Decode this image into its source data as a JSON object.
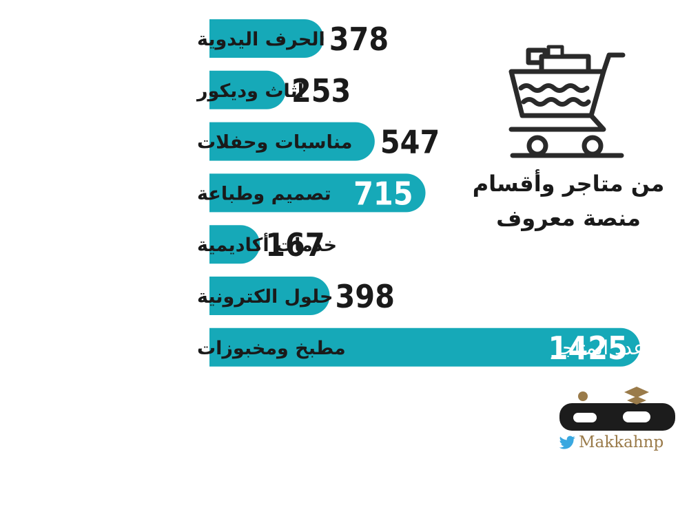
{
  "chart_data": {
    "type": "bar",
    "orientation": "horizontal",
    "categories": [
      "الحرف اليدوية",
      "أثاث وديكور",
      "مناسبات وحفلات",
      "تصميم وطباعة",
      "خدمات أكاديمية",
      "حلول الكترونية",
      "مطبخ ومخبوزات"
    ],
    "values": [
      378,
      253,
      547,
      715,
      167,
      398,
      1425
    ],
    "bar_caption": "عدد المتاجر",
    "bar_color": "#16a9b8",
    "inside_label_color": "#ffffff",
    "grid": false,
    "legend": "none"
  },
  "side_panel": {
    "icon": "shopping-cart-icon",
    "title_line1": "من متاجر وأقسام",
    "title_line2": "منصة معروف"
  },
  "branding": {
    "logo": "makkah-newspaper-logo",
    "handle_icon": "twitter-bird-icon",
    "handle": "Makkahnp"
  }
}
